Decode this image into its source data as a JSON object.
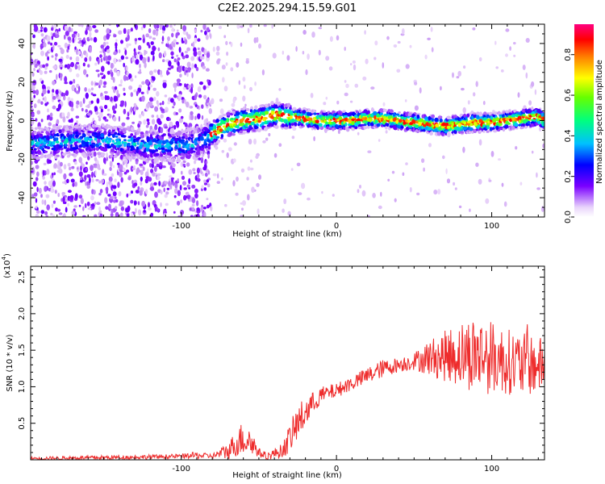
{
  "title": "C2E2.2025.294.15.59.G01",
  "chart_data": [
    {
      "type": "heatmap",
      "name": "spectrogram",
      "xlabel": "Height of straight line (km)",
      "ylabel": "Frequency (Hz)",
      "xlim": [
        -197,
        134
      ],
      "ylim": [
        -50,
        50
      ],
      "xticks": [
        -100,
        0,
        100
      ],
      "xtick_labels": [
        "-100",
        "0",
        "100"
      ],
      "yticks": [
        -40,
        -20,
        0,
        20,
        40
      ],
      "ytick_labels": [
        "-40",
        "-20",
        "0",
        "20",
        "40"
      ],
      "ridge": {
        "x": [
          -197,
          -180,
          -160,
          -140,
          -120,
          -100,
          -90,
          -80,
          -75,
          -70,
          -60,
          -50,
          -40,
          -30,
          -20,
          -10,
          0,
          10,
          20,
          30,
          40,
          50,
          60,
          70,
          80,
          90,
          100,
          110,
          120,
          130,
          134
        ],
        "freq": [
          -12,
          -11,
          -10,
          -11,
          -13,
          -13,
          -12,
          -7,
          -4,
          -2,
          0,
          1,
          3,
          2,
          1,
          0,
          0,
          0,
          1,
          1,
          0,
          -1,
          -2,
          -3,
          -2,
          -1,
          -1,
          0,
          1,
          2,
          0
        ]
      },
      "colorbar": {
        "label": "Normalized spectral amplitude",
        "range": [
          0,
          0.95
        ],
        "ticks": [
          0.0,
          0.2,
          0.4,
          0.6,
          0.8
        ],
        "tick_labels": [
          "0.0",
          "0.2",
          "0.4",
          "0.6",
          "0.8"
        ],
        "colors": [
          "#f4e7fb",
          "#6a00ff",
          "#0000ff",
          "#00c8ff",
          "#00ff80",
          "#80ff00",
          "#ffff00",
          "#ff8000",
          "#ff0000",
          "#ff007f"
        ]
      }
    },
    {
      "type": "line",
      "name": "snr",
      "xlabel": "Height of straight line (km)",
      "ylabel": "SNR (10 * v/v)",
      "y_multiplier_label": "(x10",
      "y_multiplier_exp": "4",
      "y_multiplier_close": ")",
      "xlim": [
        -197,
        134
      ],
      "ylim": [
        0,
        2.65
      ],
      "xticks": [
        -100,
        0,
        100
      ],
      "xtick_labels": [
        "-100",
        "0",
        "100"
      ],
      "yticks": [
        0.5,
        1.0,
        1.5,
        2.0,
        2.5
      ],
      "ytick_labels": [
        "0.5",
        "1.0",
        "1.5",
        "2.0",
        "2.5"
      ],
      "color": "#ee2c2c",
      "envelope": {
        "x": [
          -197,
          -150,
          -120,
          -100,
          -90,
          -80,
          -70,
          -65,
          -60,
          -55,
          -50,
          -45,
          -35,
          -30,
          -25,
          -20,
          -15,
          -10,
          0,
          10,
          20,
          30,
          40,
          50,
          60,
          70,
          80,
          90,
          100,
          110,
          120,
          130,
          134
        ],
        "mean": [
          0.02,
          0.03,
          0.04,
          0.05,
          0.06,
          0.05,
          0.12,
          0.22,
          0.3,
          0.25,
          0.1,
          0.05,
          0.12,
          0.3,
          0.5,
          0.65,
          0.78,
          0.88,
          0.95,
          1.05,
          1.15,
          1.25,
          1.3,
          1.35,
          1.4,
          1.42,
          1.45,
          1.45,
          1.4,
          1.35,
          1.3,
          1.3,
          1.3
        ],
        "amp": [
          0.02,
          0.03,
          0.03,
          0.03,
          0.05,
          0.03,
          0.12,
          0.18,
          0.25,
          0.2,
          0.06,
          0.05,
          0.1,
          0.2,
          0.25,
          0.22,
          0.15,
          0.12,
          0.1,
          0.1,
          0.12,
          0.12,
          0.1,
          0.12,
          0.25,
          0.35,
          0.45,
          0.55,
          0.5,
          0.45,
          0.45,
          0.4,
          0.35
        ]
      }
    }
  ]
}
